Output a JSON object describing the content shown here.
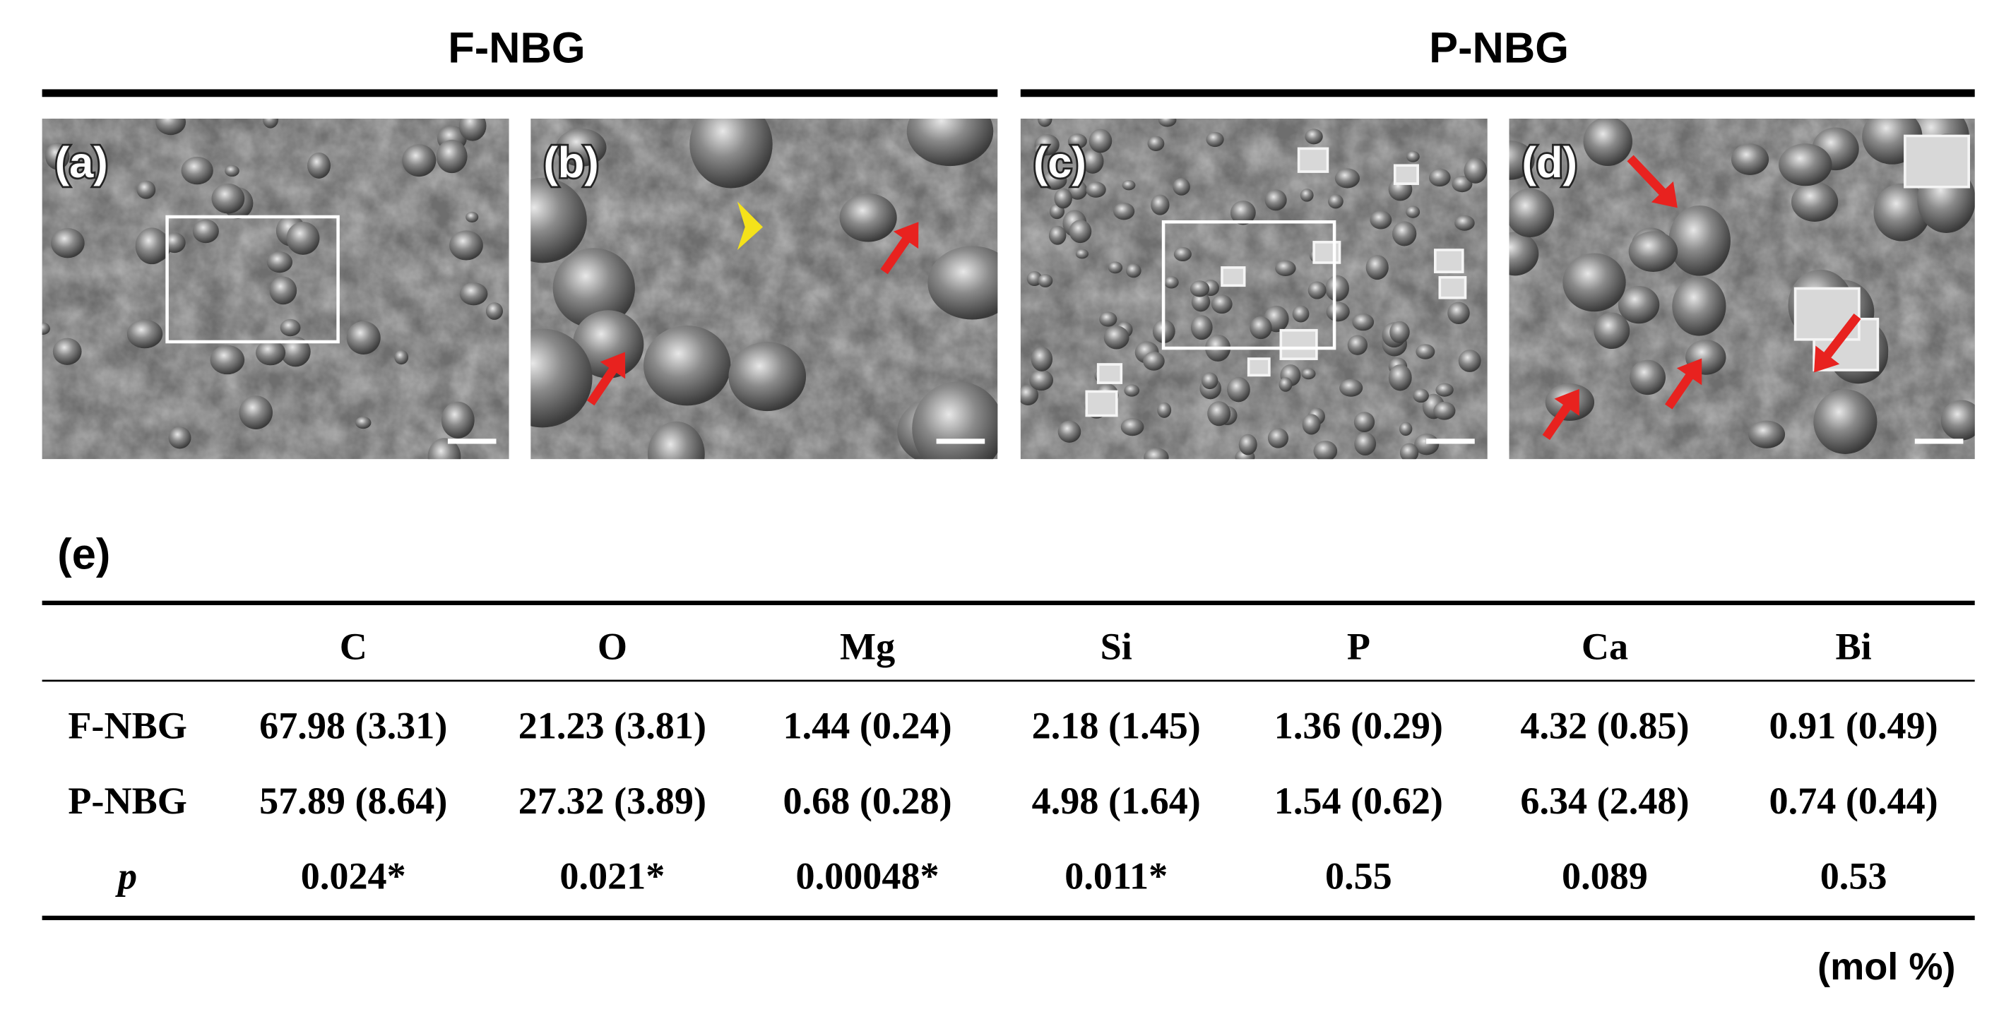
{
  "headers": [
    "F-NBG",
    "P-NBG"
  ],
  "panels": [
    "(a)",
    "(b)",
    "(c)",
    "(d)"
  ],
  "table_label": "(e)",
  "table": {
    "columns": [
      "C",
      "O",
      "Mg",
      "Si",
      "P",
      "Ca",
      "Bi"
    ],
    "rows": [
      {
        "label": "F-NBG",
        "cells": [
          "67.98 (3.31)",
          "21.23 (3.81)",
          "1.44 (0.24)",
          "2.18 (1.45)",
          "1.36 (0.29)",
          "4.32 (0.85)",
          "0.91 (0.49)"
        ]
      },
      {
        "label": "P-NBG",
        "cells": [
          "57.89 (8.64)",
          "27.32 (3.89)",
          "0.68 (0.28)",
          "4.98 (1.64)",
          "1.54 (0.62)",
          "6.34 (2.48)",
          "0.74 (0.44)"
        ]
      },
      {
        "label": "p",
        "cells": [
          "0.024*",
          "0.021*",
          "0.00048*",
          "0.011*",
          "0.55",
          "0.089",
          "0.53"
        ]
      }
    ]
  },
  "unit": "(mol %)"
}
